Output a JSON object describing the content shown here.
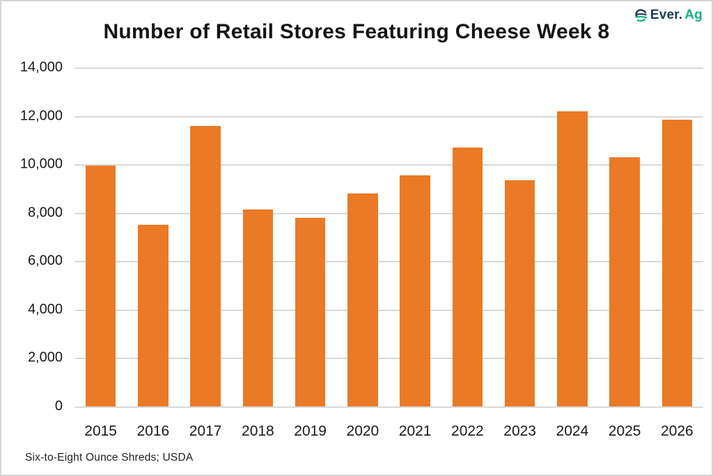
{
  "page": {
    "title": "Number of Retail Stores Featuring Cheese Week 8",
    "footnote": "Six-to-Eight Ounce Shreds; USDA"
  },
  "logo": {
    "icon": "everag-leaf-swirl-icon",
    "text_primary": "Ever.",
    "text_secondary": "Ag",
    "color_primary": "#1b3a57",
    "color_secondary": "#17b286"
  },
  "chart_data": {
    "type": "bar",
    "title": "Number of Retail Stores Featuring Cheese Week 8",
    "categories": [
      "2015",
      "2016",
      "2017",
      "2018",
      "2019",
      "2020",
      "2021",
      "2022",
      "2023",
      "2024",
      "2025",
      "2026"
    ],
    "values": [
      9950,
      7500,
      11600,
      8150,
      7800,
      8800,
      9550,
      10700,
      9350,
      12200,
      10300,
      11850
    ],
    "xlabel": "",
    "ylabel": "",
    "ylim": [
      0,
      14000
    ],
    "ytick_values": [
      0,
      2000,
      4000,
      6000,
      8000,
      10000,
      12000,
      14000
    ],
    "ytick_labels": [
      "0",
      "2,000",
      "4,000",
      "6,000",
      "8,000",
      "10,000",
      "12,000",
      "14,000"
    ],
    "grid": true,
    "legend": false,
    "bar_color": "#ea7a25",
    "gridline_color": "#d8d8d8",
    "source_note": "Six-to-Eight Ounce Shreds; USDA"
  }
}
